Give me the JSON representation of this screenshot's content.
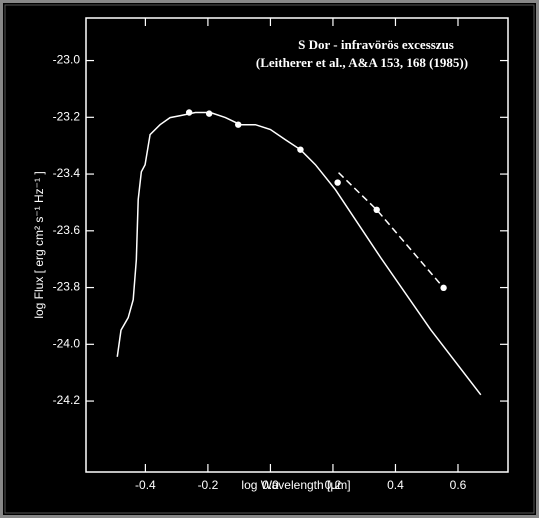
{
  "chart_data": {
    "type": "line",
    "title": "S Dor - infravörös excesszus",
    "subtitle": "(Leitherer et al., A&A 153, 168 (1985))",
    "x_label": "log Wavelength [μm]",
    "y_label": "log Flux [ erg cm² s⁻¹ Hz⁻¹ ]",
    "xlim": [
      -0.59,
      0.76
    ],
    "ylim": [
      -24.45,
      -22.85
    ],
    "xticks": [
      -0.4,
      -0.2,
      {
        "value": 0,
        "label": "0.0"
      },
      0.2,
      0.4,
      0.6
    ],
    "yticks": [
      {
        "value": -23,
        "label": "-23.0"
      },
      -23.2,
      -23.4,
      -23.6,
      -23.8,
      {
        "value": -24,
        "label": "-24.0"
      },
      -24.2
    ],
    "series": [
      {
        "style": "line",
        "color": "#ffffff",
        "x": [
          -0.49,
          -0.478,
          -0.455,
          -0.439,
          -0.429,
          -0.423,
          -0.413,
          -0.401,
          -0.385,
          -0.353,
          -0.321,
          -0.288,
          -0.24,
          -0.192,
          -0.144,
          -0.096,
          -0.048,
          0.0,
          0.048,
          0.096,
          0.144,
          0.208,
          0.353,
          0.513,
          0.673
        ],
        "values": [
          -24.044,
          -23.95,
          -23.906,
          -23.843,
          -23.702,
          -23.49,
          -23.392,
          -23.367,
          -23.261,
          -23.226,
          -23.201,
          -23.194,
          -23.183,
          -23.183,
          -23.201,
          -23.226,
          -23.226,
          -23.243,
          -23.279,
          -23.314,
          -23.367,
          -23.455,
          -23.695,
          -23.949,
          -24.178
        ]
      },
      {
        "style": "markers",
        "color": "#ffffff",
        "x": [
          -0.26,
          -0.196,
          -0.103,
          0.096,
          0.215,
          0.34,
          0.554
        ],
        "values": [
          -23.183,
          -23.187,
          -23.226,
          -23.314,
          -23.43,
          -23.526,
          -23.801
        ]
      },
      {
        "style": "dashed",
        "color": "#ffffff",
        "x": [
          0.218,
          0.34,
          0.554
        ],
        "values": [
          -23.395,
          -23.526,
          -23.801
        ]
      }
    ]
  }
}
